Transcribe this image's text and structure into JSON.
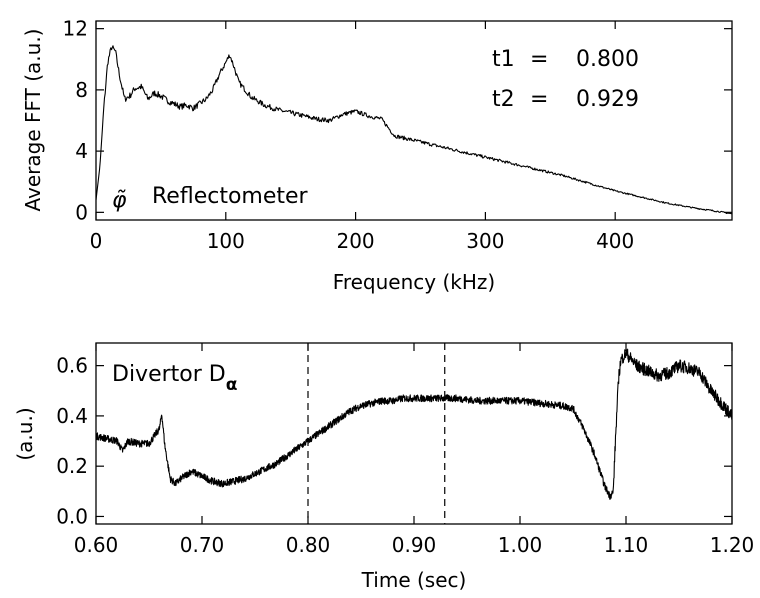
{
  "chart_data": [
    {
      "type": "line",
      "xlabel": "Frequency (kHz)",
      "ylabel": "Average FFT (a.u.)",
      "xlim": [
        0,
        490
      ],
      "ylim": [
        -0.5,
        12.5
      ],
      "xticks": [
        0,
        100,
        200,
        300,
        400
      ],
      "yticks": [
        0,
        4,
        8,
        12
      ],
      "grid": false,
      "annotations": {
        "label_symbol": "φ̃",
        "label_text": "Reflectometer",
        "t1_label": "t1",
        "t1_eq": "=",
        "t1_value": "0.800",
        "t2_label": "t2",
        "t2_eq": "=",
        "t2_value": "0.929"
      },
      "series": [
        {
          "x": [
            0,
            3,
            6,
            9,
            12,
            15,
            18,
            22,
            26,
            30,
            35,
            40,
            45,
            50,
            55,
            60,
            65,
            70,
            75,
            80,
            85,
            90,
            95,
            100,
            103,
            106,
            110,
            115,
            120,
            130,
            140,
            150,
            160,
            170,
            180,
            190,
            200,
            210,
            220,
            230,
            240,
            250,
            260,
            280,
            300,
            320,
            340,
            360,
            380,
            400,
            420,
            440,
            460,
            480,
            490
          ],
          "y": [
            0.8,
            3.0,
            6.8,
            9.8,
            10.8,
            10.5,
            9.0,
            7.4,
            7.6,
            8.1,
            8.2,
            7.4,
            7.8,
            7.6,
            7.3,
            7.1,
            6.9,
            7.0,
            6.8,
            7.1,
            7.4,
            8.0,
            9.0,
            9.8,
            10.3,
            9.6,
            8.5,
            8.0,
            7.5,
            7.0,
            6.7,
            6.5,
            6.3,
            6.1,
            6.0,
            6.4,
            6.6,
            6.3,
            6.1,
            5.0,
            4.8,
            4.6,
            4.4,
            4.0,
            3.6,
            3.2,
            2.8,
            2.4,
            1.9,
            1.4,
            1.0,
            0.6,
            0.3,
            0.05,
            -0.1
          ]
        }
      ]
    },
    {
      "type": "line",
      "xlabel": "Time (sec)",
      "ylabel": "(a.u.)",
      "xlim": [
        0.6,
        1.2
      ],
      "ylim": [
        -0.03,
        0.69
      ],
      "xticks": [
        "0.60",
        "0.70",
        "0.80",
        "0.90",
        "1.00",
        "1.10",
        "1.20"
      ],
      "yticks": [
        "0.0",
        "0.2",
        "0.4",
        "0.6"
      ],
      "grid": false,
      "annotations": {
        "label_text": "Divertor D",
        "label_sub": "α"
      },
      "vlines": [
        0.8,
        0.929
      ],
      "series": [
        {
          "x": [
            0.6,
            0.61,
            0.62,
            0.625,
            0.63,
            0.64,
            0.65,
            0.66,
            0.662,
            0.665,
            0.67,
            0.675,
            0.68,
            0.69,
            0.7,
            0.71,
            0.72,
            0.73,
            0.74,
            0.75,
            0.76,
            0.77,
            0.78,
            0.79,
            0.8,
            0.81,
            0.82,
            0.83,
            0.84,
            0.85,
            0.86,
            0.87,
            0.88,
            0.89,
            0.9,
            0.92,
            0.94,
            0.96,
            0.98,
            1.0,
            1.02,
            1.04,
            1.05,
            1.055,
            1.06,
            1.07,
            1.08,
            1.085,
            1.088,
            1.09,
            1.093,
            1.095,
            1.1,
            1.11,
            1.12,
            1.13,
            1.14,
            1.15,
            1.16,
            1.17,
            1.18,
            1.19,
            1.2
          ],
          "y": [
            0.32,
            0.31,
            0.3,
            0.26,
            0.3,
            0.29,
            0.29,
            0.35,
            0.41,
            0.28,
            0.15,
            0.13,
            0.15,
            0.18,
            0.16,
            0.14,
            0.13,
            0.14,
            0.15,
            0.17,
            0.19,
            0.21,
            0.24,
            0.27,
            0.3,
            0.33,
            0.36,
            0.39,
            0.42,
            0.44,
            0.45,
            0.46,
            0.46,
            0.47,
            0.47,
            0.47,
            0.47,
            0.46,
            0.46,
            0.46,
            0.45,
            0.44,
            0.43,
            0.39,
            0.35,
            0.25,
            0.12,
            0.08,
            0.1,
            0.3,
            0.55,
            0.62,
            0.65,
            0.6,
            0.58,
            0.56,
            0.57,
            0.6,
            0.59,
            0.57,
            0.5,
            0.45,
            0.4
          ]
        }
      ]
    }
  ]
}
